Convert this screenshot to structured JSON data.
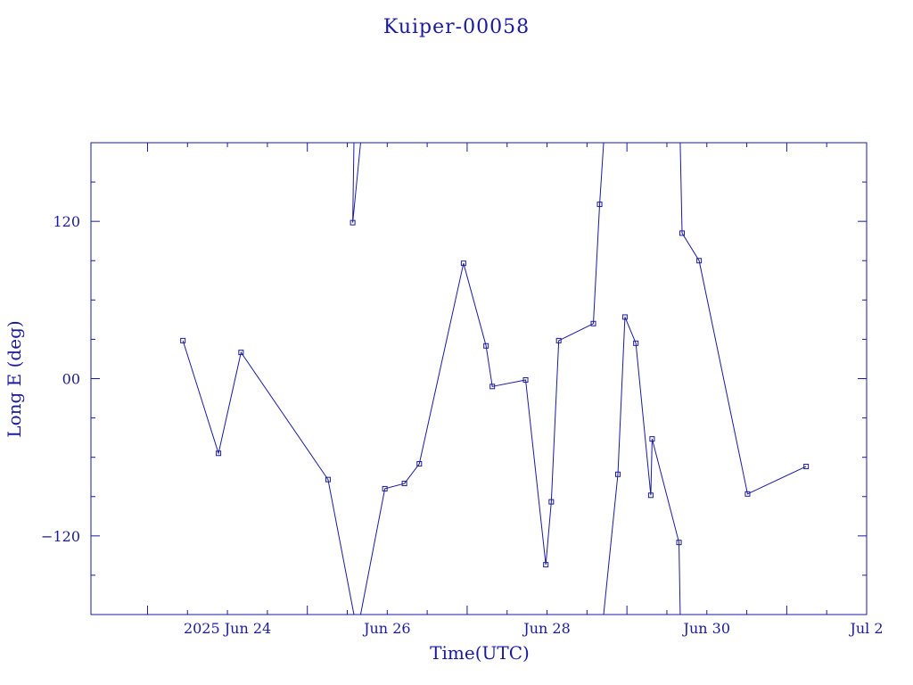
{
  "chart_data": {
    "type": "line",
    "title": "Kuiper-00058",
    "xlabel": "Time(UTC)",
    "ylabel": "Long E (deg)",
    "x_unit": "days",
    "xlim": [
      "2025-06-22T07:00",
      "2025-07-02T00:00"
    ],
    "ylim": [
      -180,
      180
    ],
    "y_wrap": [
      -180,
      180
    ],
    "x_tick_labels": [
      {
        "x": "2025-06-24T00:00",
        "label": "2025 Jun 24"
      },
      {
        "x": "2025-06-26T00:00",
        "label": "Jun 26"
      },
      {
        "x": "2025-06-28T00:00",
        "label": "Jun 28"
      },
      {
        "x": "2025-06-30T00:00",
        "label": "Jun 30"
      },
      {
        "x": "2025-07-02T00:00",
        "label": "Jul  2"
      }
    ],
    "y_ticks": [
      {
        "y": 120,
        "label": "120"
      },
      {
        "y": 0,
        "label": "00"
      },
      {
        "y": -120,
        "label": "−120"
      }
    ],
    "grid": false,
    "legend": "none",
    "color": "#1a1aa0",
    "marker": "square",
    "series": [
      {
        "points": [
          [
            "2025-06-23T10:38",
            29
          ],
          [
            "2025-06-23T21:19",
            -57
          ],
          [
            "2025-06-24T04:05",
            20
          ],
          [
            "2025-06-25T06:13",
            -77
          ],
          [
            "2025-06-25T14:00",
            -180
          ],
          [
            "2025-06-25T14:00",
            180
          ],
          [
            "2025-06-25T13:38",
            119
          ],
          [
            "2025-06-25T16:00",
            180
          ],
          [
            "2025-06-25T16:00",
            -180
          ],
          [
            "2025-06-25T23:17",
            -84
          ],
          [
            "2025-06-26T05:10",
            -80
          ],
          [
            "2025-06-26T09:38",
            -65
          ],
          [
            "2025-06-26T22:55",
            88
          ],
          [
            "2025-06-27T05:41",
            25
          ],
          [
            "2025-06-27T07:34",
            -6
          ],
          [
            "2025-06-27T17:34",
            -1
          ],
          [
            "2025-06-27T23:38",
            -142
          ],
          [
            "2025-06-28T01:17",
            -94
          ],
          [
            "2025-06-28T03:31",
            29
          ],
          [
            "2025-06-28T13:55",
            42
          ],
          [
            "2025-06-28T15:48",
            133
          ],
          [
            "2025-06-28T17:00",
            180
          ],
          [
            "2025-06-28T17:00",
            -180
          ],
          [
            "2025-06-28T21:17",
            -73
          ],
          [
            "2025-06-28T23:24",
            47
          ],
          [
            "2025-06-29T02:41",
            27
          ],
          [
            "2025-06-29T07:10",
            -89
          ],
          [
            "2025-06-29T07:34",
            -46
          ],
          [
            "2025-06-29T15:38",
            -125
          ],
          [
            "2025-06-29T16:00",
            -180
          ],
          [
            "2025-06-29T16:00",
            180
          ],
          [
            "2025-06-29T16:34",
            111
          ],
          [
            "2025-06-29T21:41",
            90
          ],
          [
            "2025-06-30T12:14",
            -88
          ],
          [
            "2025-06-31T05:50",
            -67
          ]
        ]
      }
    ]
  }
}
